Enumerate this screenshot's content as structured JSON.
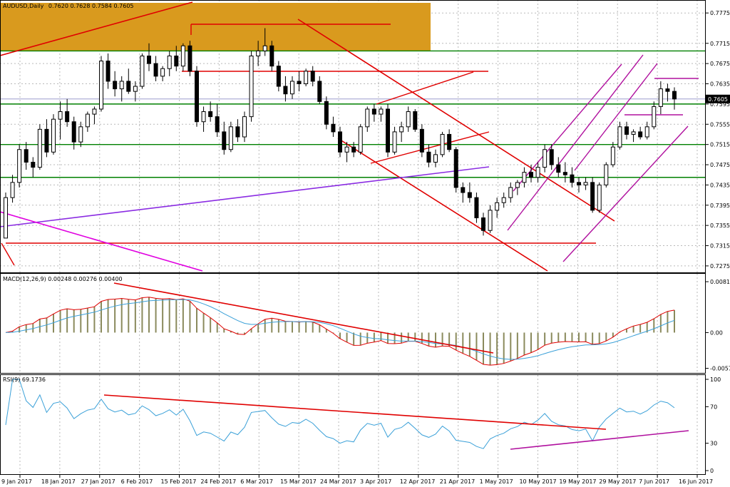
{
  "chart_data": {
    "type": "candlestick",
    "symbol_title": "AUDUSD,Daily",
    "ohlc_header": "0.7620 0.7628 0.7584 0.7605",
    "current_price": "0.7605",
    "y_ticks": [
      "0.7775",
      "0.7715",
      "0.7675",
      "0.7635",
      "0.7595",
      "0.7555",
      "0.7515",
      "0.7475",
      "0.7435",
      "0.7395",
      "0.7355",
      "0.7315",
      "0.7275"
    ],
    "ylim": [
      0.7265,
      0.7795
    ],
    "x_labels": [
      "9 Jan 2017",
      "18 Jan 2017",
      "27 Jan 2017",
      "6 Feb 2017",
      "15 Feb 2017",
      "24 Feb 2017",
      "6 Mar 2017",
      "15 Mar 2017",
      "24 Mar 2017",
      "3 Apr 2017",
      "12 Apr 2017",
      "21 Apr 2017",
      "1 May 2017",
      "10 May 2017",
      "19 May 2017",
      "29 May 2017",
      "7 Jun 2017",
      "16 Jun 2017"
    ],
    "candles": [
      [
        0.733,
        0.742,
        0.733,
        0.741
      ],
      [
        0.741,
        0.7455,
        0.74,
        0.744
      ],
      [
        0.744,
        0.7515,
        0.743,
        0.7505
      ],
      [
        0.7505,
        0.752,
        0.7465,
        0.748
      ],
      [
        0.748,
        0.749,
        0.745,
        0.747
      ],
      [
        0.747,
        0.7555,
        0.7465,
        0.7545
      ],
      [
        0.7545,
        0.7565,
        0.749,
        0.75
      ],
      [
        0.75,
        0.7575,
        0.7495,
        0.7565
      ],
      [
        0.7565,
        0.76,
        0.7525,
        0.758
      ],
      [
        0.758,
        0.7605,
        0.755,
        0.756
      ],
      [
        0.756,
        0.757,
        0.7505,
        0.752
      ],
      [
        0.752,
        0.756,
        0.751,
        0.755
      ],
      [
        0.755,
        0.758,
        0.754,
        0.7575
      ],
      [
        0.7575,
        0.759,
        0.7555,
        0.7585
      ],
      [
        0.7585,
        0.769,
        0.758,
        0.768
      ],
      [
        0.768,
        0.7695,
        0.7625,
        0.764
      ],
      [
        0.764,
        0.766,
        0.761,
        0.7625
      ],
      [
        0.7625,
        0.765,
        0.76,
        0.764
      ],
      [
        0.764,
        0.7665,
        0.7615,
        0.762
      ],
      [
        0.762,
        0.764,
        0.76,
        0.763
      ],
      [
        0.763,
        0.7695,
        0.7625,
        0.769
      ],
      [
        0.769,
        0.7715,
        0.766,
        0.7675
      ],
      [
        0.7675,
        0.769,
        0.764,
        0.765
      ],
      [
        0.765,
        0.767,
        0.764,
        0.7665
      ],
      [
        0.7665,
        0.77,
        0.765,
        0.769
      ],
      [
        0.769,
        0.771,
        0.766,
        0.767
      ],
      [
        0.767,
        0.7715,
        0.766,
        0.771
      ],
      [
        0.771,
        0.772,
        0.765,
        0.766
      ],
      [
        0.766,
        0.767,
        0.755,
        0.756
      ],
      [
        0.756,
        0.759,
        0.754,
        0.758
      ],
      [
        0.758,
        0.76,
        0.756,
        0.757
      ],
      [
        0.757,
        0.7595,
        0.753,
        0.754
      ],
      [
        0.754,
        0.756,
        0.7495,
        0.7505
      ],
      [
        0.7505,
        0.756,
        0.75,
        0.755
      ],
      [
        0.755,
        0.7565,
        0.752,
        0.753
      ],
      [
        0.753,
        0.758,
        0.752,
        0.757
      ],
      [
        0.757,
        0.77,
        0.756,
        0.769
      ],
      [
        0.769,
        0.772,
        0.767,
        0.77
      ],
      [
        0.77,
        0.7745,
        0.769,
        0.771
      ],
      [
        0.771,
        0.772,
        0.766,
        0.767
      ],
      [
        0.767,
        0.768,
        0.762,
        0.763
      ],
      [
        0.763,
        0.765,
        0.76,
        0.7615
      ],
      [
        0.7615,
        0.765,
        0.7605,
        0.764
      ],
      [
        0.764,
        0.766,
        0.762,
        0.7635
      ],
      [
        0.7635,
        0.7665,
        0.763,
        0.766
      ],
      [
        0.766,
        0.767,
        0.763,
        0.764
      ],
      [
        0.764,
        0.765,
        0.7595,
        0.76
      ],
      [
        0.76,
        0.761,
        0.7545,
        0.7555
      ],
      [
        0.7555,
        0.757,
        0.753,
        0.754
      ],
      [
        0.754,
        0.755,
        0.749,
        0.75
      ],
      [
        0.75,
        0.752,
        0.748,
        0.751
      ],
      [
        0.751,
        0.752,
        0.749,
        0.75
      ],
      [
        0.75,
        0.7555,
        0.7495,
        0.755
      ],
      [
        0.755,
        0.759,
        0.754,
        0.7585
      ],
      [
        0.7585,
        0.7595,
        0.756,
        0.7575
      ],
      [
        0.7575,
        0.759,
        0.756,
        0.7585
      ],
      [
        0.7585,
        0.7595,
        0.749,
        0.75
      ],
      [
        0.75,
        0.755,
        0.7495,
        0.754
      ],
      [
        0.754,
        0.756,
        0.752,
        0.755
      ],
      [
        0.755,
        0.759,
        0.754,
        0.758
      ],
      [
        0.758,
        0.7585,
        0.754,
        0.7545
      ],
      [
        0.7545,
        0.7555,
        0.749,
        0.75
      ],
      [
        0.75,
        0.7515,
        0.747,
        0.748
      ],
      [
        0.748,
        0.7505,
        0.747,
        0.7495
      ],
      [
        0.7495,
        0.754,
        0.749,
        0.7535
      ],
      [
        0.7535,
        0.7545,
        0.75,
        0.7505
      ],
      [
        0.7505,
        0.751,
        0.742,
        0.743
      ],
      [
        0.743,
        0.744,
        0.74,
        0.742
      ],
      [
        0.742,
        0.744,
        0.74,
        0.741
      ],
      [
        0.741,
        0.742,
        0.736,
        0.737
      ],
      [
        0.737,
        0.738,
        0.7335,
        0.7345
      ],
      [
        0.7345,
        0.7395,
        0.734,
        0.7385
      ],
      [
        0.7385,
        0.741,
        0.737,
        0.74
      ],
      [
        0.74,
        0.742,
        0.739,
        0.741
      ],
      [
        0.741,
        0.744,
        0.74,
        0.743
      ],
      [
        0.743,
        0.7445,
        0.7415,
        0.744
      ],
      [
        0.744,
        0.747,
        0.743,
        0.746
      ],
      [
        0.746,
        0.7475,
        0.744,
        0.745
      ],
      [
        0.745,
        0.748,
        0.744,
        0.747
      ],
      [
        0.747,
        0.7515,
        0.746,
        0.7505
      ],
      [
        0.7505,
        0.7515,
        0.7465,
        0.7475
      ],
      [
        0.7475,
        0.749,
        0.745,
        0.746
      ],
      [
        0.746,
        0.748,
        0.744,
        0.7455
      ],
      [
        0.7455,
        0.747,
        0.743,
        0.744
      ],
      [
        0.744,
        0.745,
        0.742,
        0.7435
      ],
      [
        0.7435,
        0.745,
        0.7425,
        0.744
      ],
      [
        0.744,
        0.745,
        0.738,
        0.7385
      ],
      [
        0.7385,
        0.744,
        0.738,
        0.7435
      ],
      [
        0.7435,
        0.748,
        0.743,
        0.7475
      ],
      [
        0.7475,
        0.752,
        0.747,
        0.751
      ],
      [
        0.751,
        0.756,
        0.7505,
        0.755
      ],
      [
        0.755,
        0.756,
        0.7525,
        0.7535
      ],
      [
        0.7535,
        0.7545,
        0.752,
        0.754
      ],
      [
        0.754,
        0.755,
        0.7525,
        0.753
      ],
      [
        0.753,
        0.756,
        0.7525,
        0.755
      ],
      [
        0.755,
        0.76,
        0.7545,
        0.759
      ],
      [
        0.759,
        0.764,
        0.7575,
        0.7625
      ],
      [
        0.7625,
        0.7635,
        0.76,
        0.762
      ],
      [
        0.762,
        0.7628,
        0.7584,
        0.7605
      ]
    ],
    "horizontal_levels": [
      {
        "value": 0.77,
        "color": "#008000"
      },
      {
        "value": 0.7595,
        "color": "#008000"
      },
      {
        "value": 0.7515,
        "color": "#008000"
      },
      {
        "value": 0.745,
        "color": "#008000"
      }
    ],
    "resistance_zone": {
      "from": 0.77,
      "to": 0.7795,
      "color": "#d99a1e"
    },
    "macd": {
      "label": "MACD(12,26,9) 0.00248 0.00276 0.00400",
      "y_ticks": [
        "0.00815",
        "0.00",
        "-0.00572"
      ],
      "ylim": [
        -0.006,
        0.0085
      ]
    },
    "rsi": {
      "label": "RSI(9) 69.1736",
      "y_ticks": [
        "100",
        "70",
        "30",
        "0"
      ],
      "ylim": [
        0,
        100
      ]
    }
  }
}
